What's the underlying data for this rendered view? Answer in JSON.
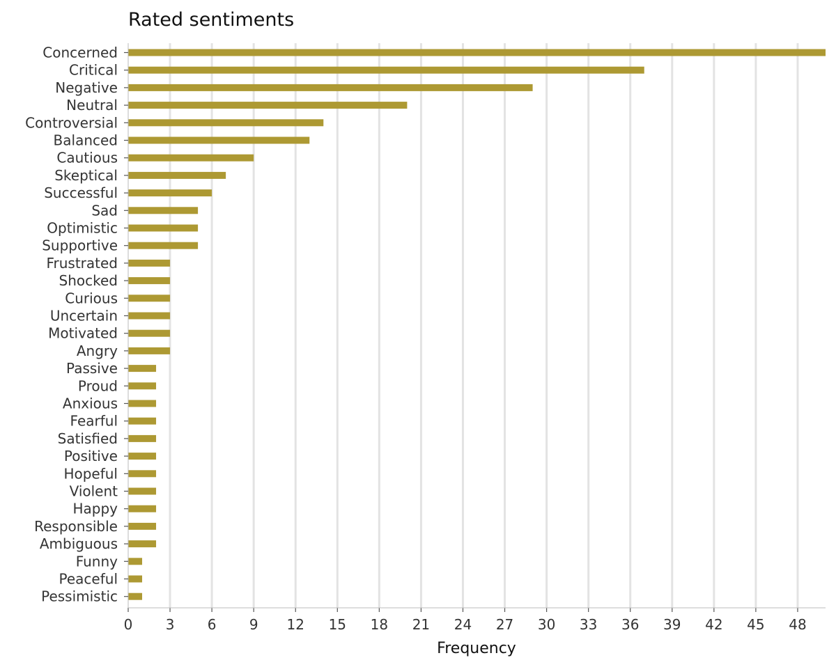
{
  "chart_data": {
    "type": "bar",
    "orientation": "horizontal",
    "title": "Rated sentiments",
    "xlabel": "Frequency",
    "ylabel": "",
    "xlim": [
      0,
      50
    ],
    "xticks": [
      0,
      3,
      6,
      9,
      12,
      15,
      18,
      21,
      24,
      27,
      30,
      33,
      36,
      39,
      42,
      45,
      48
    ],
    "grid": "vertical",
    "bar_color": "#ad9933",
    "categories": [
      "Concerned",
      "Critical",
      "Negative",
      "Neutral",
      "Controversial",
      "Balanced",
      "Cautious",
      "Skeptical",
      "Successful",
      "Sad",
      "Optimistic",
      "Supportive",
      "Frustrated",
      "Shocked",
      "Curious",
      "Uncertain",
      "Motivated",
      "Angry",
      "Passive",
      "Proud",
      "Anxious",
      "Fearful",
      "Satisfied",
      "Positive",
      "Hopeful",
      "Violent",
      "Happy",
      "Responsible",
      "Ambiguous",
      "Funny",
      "Peaceful",
      "Pessimistic"
    ],
    "values": [
      50,
      37,
      29,
      20,
      14,
      13,
      9,
      7,
      6,
      5,
      5,
      5,
      3,
      3,
      3,
      3,
      3,
      3,
      2,
      2,
      2,
      2,
      2,
      2,
      2,
      2,
      2,
      2,
      2,
      1,
      1,
      1
    ]
  }
}
